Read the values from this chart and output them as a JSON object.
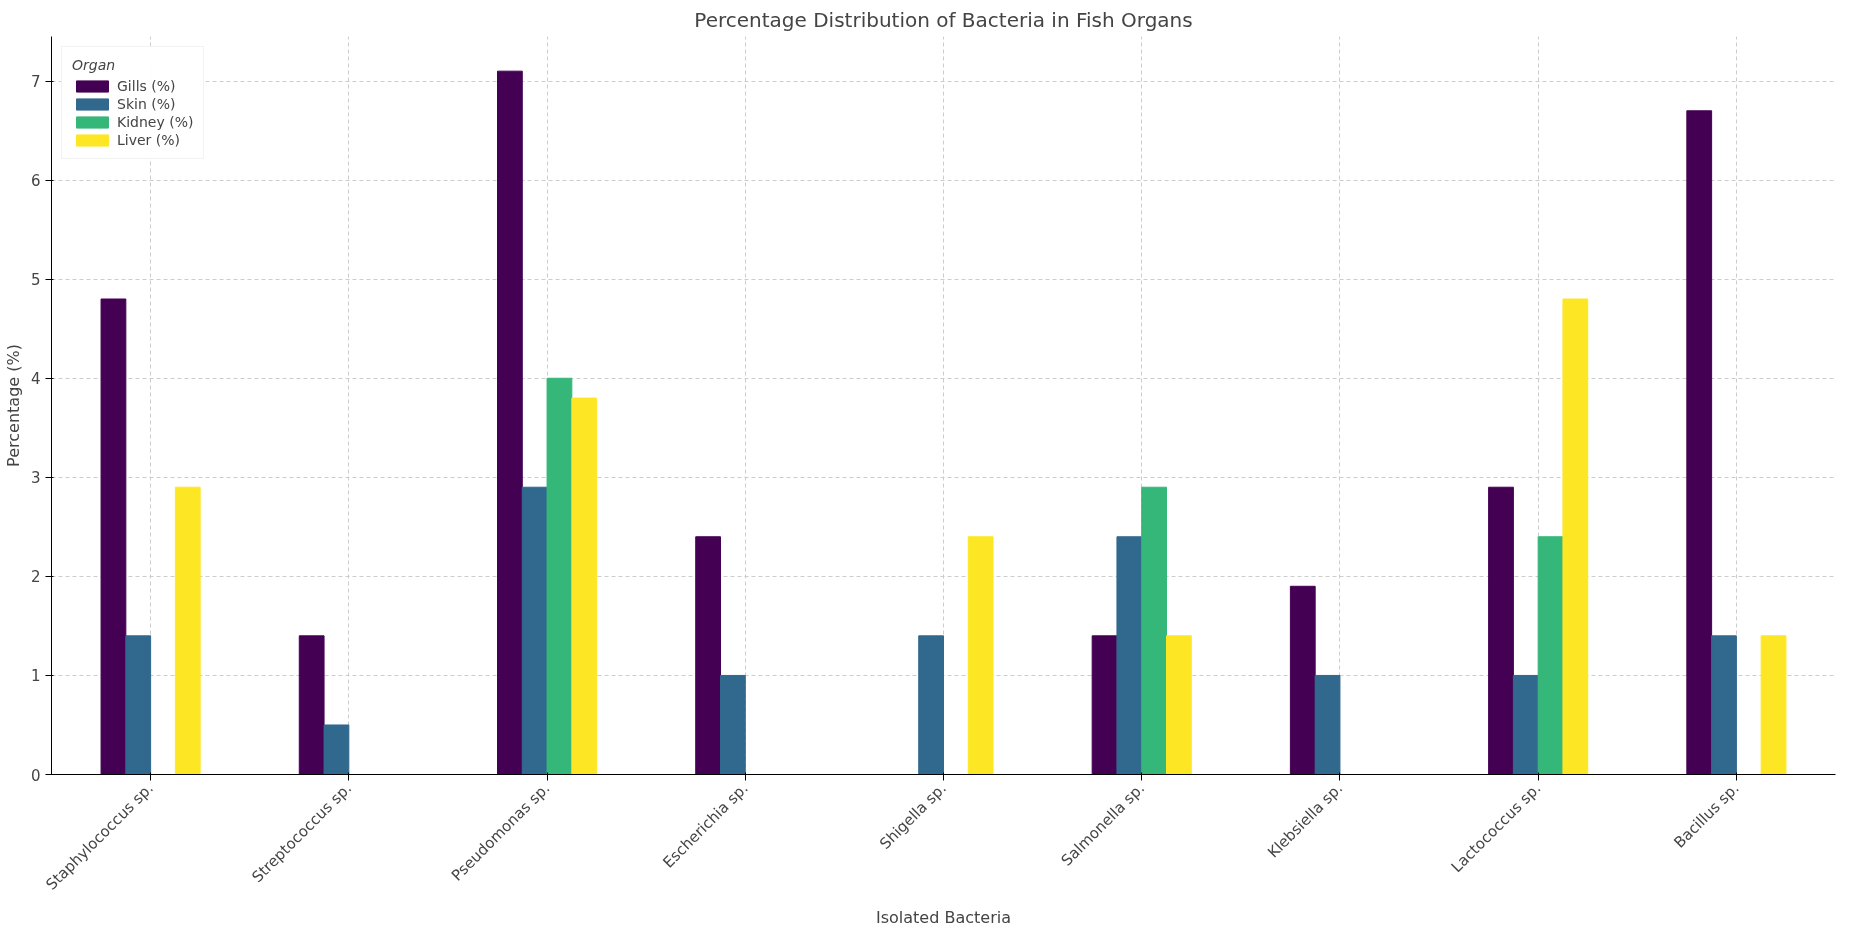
{
  "chart_data": {
    "type": "bar",
    "title": "Percentage Distribution of Bacteria in Fish Organs",
    "xlabel": "Isolated Bacteria",
    "ylabel": "Percentage (%)",
    "legend_title": "Organ",
    "categories": [
      "Staphylococcus sp.",
      "Streptococcus sp.",
      "Pseudomonas sp.",
      "Escherichia sp.",
      "Shigella sp.",
      "Salmonella sp.",
      "Klebsiella sp.",
      "Lactococcus sp.",
      "Bacillus sp."
    ],
    "series": [
      {
        "name": "Gills (%)",
        "color": "#440154",
        "values": [
          4.8,
          1.4,
          7.1,
          2.4,
          null,
          1.4,
          1.9,
          2.9,
          6.7
        ]
      },
      {
        "name": "Skin (%)",
        "color": "#31688e",
        "values": [
          1.4,
          0.5,
          2.9,
          1.0,
          1.4,
          2.4,
          1.0,
          1.0,
          1.4
        ]
      },
      {
        "name": "Kidney (%)",
        "color": "#35b779",
        "values": [
          null,
          null,
          4.0,
          null,
          null,
          2.9,
          null,
          2.4,
          null
        ]
      },
      {
        "name": "Liver (%)",
        "color": "#fde725",
        "values": [
          2.9,
          null,
          3.8,
          null,
          2.4,
          1.4,
          null,
          4.8,
          1.4
        ]
      }
    ],
    "ylim": [
      0,
      7.45
    ],
    "yticks": [
      0,
      1,
      2,
      3,
      4,
      5,
      6,
      7
    ],
    "grid": true,
    "legend": "top left"
  }
}
